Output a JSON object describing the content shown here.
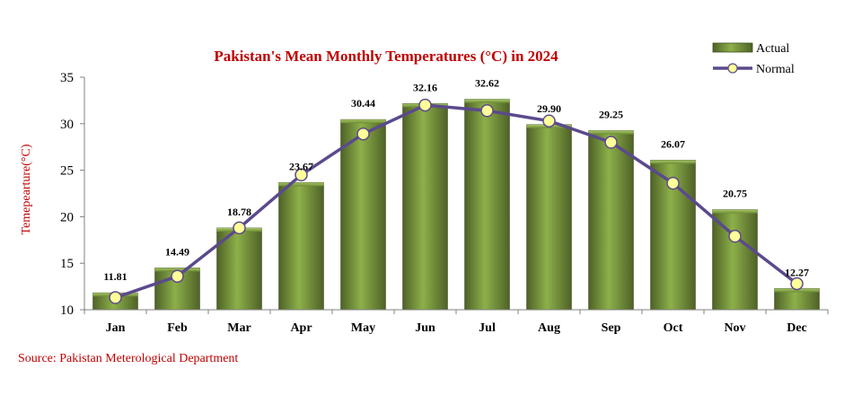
{
  "chart_data": {
    "type": "bar",
    "title": "Pakistan's Mean Monthly Temperatures (°C) in 2024",
    "ylabel": "Temepearture(°C)",
    "xlabel": "",
    "ylim": [
      10,
      35
    ],
    "yticks": [
      10,
      15,
      20,
      25,
      30,
      35
    ],
    "categories": [
      "Jan",
      "Feb",
      "Mar",
      "Apr",
      "May",
      "Jun",
      "Jul",
      "Aug",
      "Sep",
      "Oct",
      "Nov",
      "Dec"
    ],
    "series": [
      {
        "name": "Actual",
        "type": "bar",
        "color": "#76933c",
        "values": [
          11.81,
          14.49,
          18.78,
          23.67,
          30.44,
          32.16,
          32.62,
          29.9,
          29.25,
          26.07,
          20.75,
          12.27
        ],
        "labels": [
          "11.81",
          "14.49",
          "18.78",
          "23.67",
          "30.44",
          "32.16",
          "32.62",
          "29.90",
          "29.25",
          "26.07",
          "20.75",
          "12.27"
        ]
      },
      {
        "name": "Normal",
        "type": "line",
        "color": "#5b4a8c",
        "marker_color": "#ffff99",
        "values": [
          11.3,
          13.6,
          18.8,
          24.5,
          28.9,
          32.0,
          31.4,
          30.3,
          28.0,
          23.6,
          17.9,
          12.8
        ]
      }
    ],
    "legend_position": "top-right",
    "grid": false
  },
  "source": "Source: Pakistan Meterological Department"
}
